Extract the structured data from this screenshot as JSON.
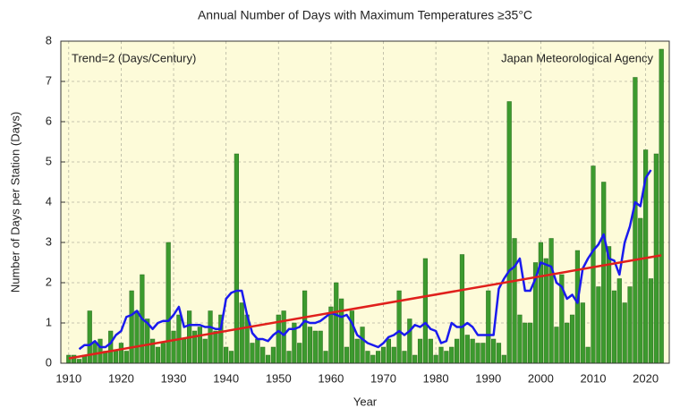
{
  "chart_data": {
    "type": "bar",
    "title": "Annual Number of Days with Maximum Temperatures ≥35°C",
    "x_label": "Year",
    "y_label": "Number of Days per Station (Days)",
    "annotations": [
      "Trend=2 (Days/Century)",
      "Japan Meteorological Agency"
    ],
    "x": [
      1910,
      1911,
      1912,
      1913,
      1914,
      1915,
      1916,
      1917,
      1918,
      1919,
      1920,
      1921,
      1922,
      1923,
      1924,
      1925,
      1926,
      1927,
      1928,
      1929,
      1930,
      1931,
      1932,
      1933,
      1934,
      1935,
      1936,
      1937,
      1938,
      1939,
      1940,
      1941,
      1942,
      1943,
      1944,
      1945,
      1946,
      1947,
      1948,
      1949,
      1950,
      1951,
      1952,
      1953,
      1954,
      1955,
      1956,
      1957,
      1958,
      1959,
      1960,
      1961,
      1962,
      1963,
      1964,
      1965,
      1966,
      1967,
      1968,
      1969,
      1970,
      1971,
      1972,
      1973,
      1974,
      1975,
      1976,
      1977,
      1978,
      1979,
      1980,
      1981,
      1982,
      1983,
      1984,
      1985,
      1986,
      1987,
      1988,
      1989,
      1990,
      1991,
      1992,
      1993,
      1994,
      1995,
      1996,
      1997,
      1998,
      1999,
      2000,
      2001,
      2002,
      2003,
      2004,
      2005,
      2006,
      2007,
      2008,
      2009,
      2010,
      2011,
      2012,
      2013,
      2014,
      2015,
      2016,
      2017,
      2018,
      2019,
      2020,
      2021,
      2022,
      2023
    ],
    "series": [
      {
        "color": "#3c9a2e",
        "values": [
          0.2,
          0.2,
          0.1,
          0.2,
          1.3,
          0.5,
          0.6,
          0.3,
          0.8,
          0.3,
          0.5,
          0.3,
          1.8,
          1.3,
          2.2,
          1.1,
          0.6,
          0.4,
          0.5,
          3.0,
          0.8,
          1.2,
          0.6,
          1.3,
          0.8,
          0.9,
          0.6,
          1.3,
          0.8,
          1.2,
          0.4,
          0.3,
          5.2,
          1.5,
          1.2,
          0.5,
          0.6,
          0.4,
          0.2,
          0.4,
          1.2,
          1.3,
          0.3,
          1.0,
          0.5,
          1.8,
          0.9,
          0.8,
          0.8,
          0.3,
          1.4,
          2.0,
          1.6,
          0.4,
          1.3,
          0.6,
          0.9,
          0.3,
          0.2,
          0.3,
          0.4,
          0.6,
          0.4,
          1.8,
          0.3,
          1.1,
          0.2,
          0.6,
          2.6,
          0.6,
          0.2,
          0.4,
          0.3,
          0.4,
          0.6,
          2.7,
          0.7,
          0.6,
          0.5,
          0.5,
          1.8,
          0.6,
          0.5,
          0.2,
          6.5,
          3.1,
          1.2,
          1.0,
          1.0,
          2.5,
          3.0,
          2.6,
          3.1,
          0.9,
          2.2,
          1.0,
          1.2,
          2.8,
          1.5,
          0.4,
          4.9,
          1.9,
          4.5,
          2.9,
          1.8,
          2.1,
          1.5,
          1.9,
          7.1,
          3.6,
          5.3,
          2.1,
          5.2,
          7.8
        ]
      },
      {
        "type": "line",
        "color": "#1a1aee",
        "values": [
          null,
          null,
          0.35,
          0.45,
          0.45,
          0.55,
          0.4,
          0.4,
          0.5,
          0.7,
          0.8,
          1.15,
          1.2,
          1.3,
          1.1,
          1.0,
          0.85,
          1.0,
          1.05,
          1.05,
          1.2,
          1.4,
          0.9,
          0.95,
          0.95,
          0.95,
          0.9,
          0.9,
          0.85,
          0.85,
          1.6,
          1.75,
          1.8,
          1.8,
          1.2,
          0.75,
          0.6,
          0.6,
          0.55,
          0.7,
          0.8,
          0.7,
          0.85,
          0.85,
          0.9,
          1.05,
          1.0,
          1.0,
          1.05,
          1.15,
          1.25,
          1.2,
          1.15,
          1.2,
          1.0,
          0.7,
          0.6,
          0.5,
          0.45,
          0.4,
          0.5,
          0.65,
          0.7,
          0.8,
          0.7,
          0.8,
          0.95,
          0.9,
          1.0,
          0.85,
          0.8,
          0.5,
          0.55,
          1.0,
          0.9,
          0.9,
          1.0,
          0.9,
          0.7,
          0.7,
          0.7,
          0.7,
          1.85,
          2.1,
          2.3,
          2.4,
          2.6,
          1.8,
          1.8,
          2.1,
          2.5,
          2.45,
          2.4,
          2.0,
          1.9,
          1.6,
          1.7,
          1.5,
          2.35,
          2.6,
          2.8,
          2.95,
          3.2,
          2.6,
          2.55,
          2.2,
          3.0,
          3.4,
          4.0,
          3.9,
          4.6,
          4.8,
          null,
          null
        ]
      }
    ],
    "trend": {
      "color": "#e0201c",
      "x": [
        1910,
        2023
      ],
      "values": [
        0.12,
        2.68
      ]
    },
    "xlim": [
      1908.5,
      2024.5
    ],
    "xticks": [
      1910,
      1920,
      1930,
      1940,
      1950,
      1960,
      1970,
      1980,
      1990,
      2000,
      2010,
      2020
    ],
    "ylim": [
      0,
      8
    ],
    "yticks": [
      0,
      1,
      2,
      3,
      4,
      5,
      6,
      7,
      8
    ],
    "grid": true
  }
}
